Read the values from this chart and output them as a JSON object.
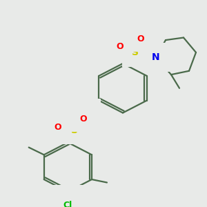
{
  "bg_color": "#e8eae8",
  "bond_color": "#4a6a4a",
  "atom_colors": {
    "S": "#cccc00",
    "O": "#ff0000",
    "N": "#0000ee",
    "Cl": "#00bb00",
    "H": "#666666",
    "C": "#4a6a4a"
  },
  "line_width": 1.6,
  "fig_size": [
    3.0,
    3.0
  ],
  "dpi": 100
}
